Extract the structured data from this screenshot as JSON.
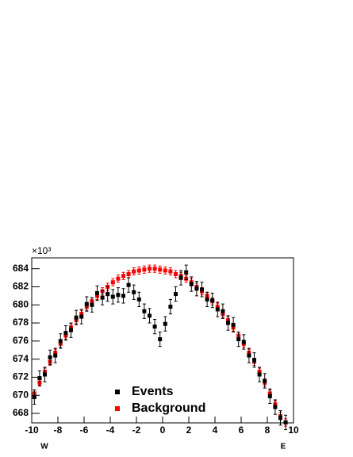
{
  "chart_data": {
    "type": "scatter",
    "y_multiplier": "×10³",
    "x_label_left": "W",
    "x_label_right": "E",
    "xlim": [
      -10,
      10
    ],
    "xticks": [
      -10,
      -8,
      -6,
      -4,
      -2,
      0,
      2,
      4,
      6,
      8,
      10
    ],
    "ylim": [
      666.95,
      685.2
    ],
    "yticks": [
      668,
      670,
      672,
      674,
      676,
      678,
      680,
      682,
      684
    ],
    "legend": "bottom-center",
    "x": [
      -9.8,
      -9.4,
      -9.0,
      -8.6,
      -8.2,
      -7.8,
      -7.4,
      -7.0,
      -6.6,
      -6.2,
      -5.8,
      -5.4,
      -5.0,
      -4.6,
      -4.2,
      -3.8,
      -3.4,
      -3.0,
      -2.6,
      -2.2,
      -1.8,
      -1.4,
      -1.0,
      -0.6,
      -0.2,
      0.2,
      0.6,
      1.0,
      1.4,
      1.8,
      2.2,
      2.6,
      3.0,
      3.4,
      3.8,
      4.2,
      4.6,
      5.0,
      5.4,
      5.8,
      6.2,
      6.6,
      7.0,
      7.4,
      7.8,
      8.2,
      8.6,
      9.0,
      9.4
    ],
    "series": [
      {
        "name": "Background",
        "color": "#ff0000",
        "error": 0.4,
        "values": [
          670.2,
          671.4,
          672.6,
          673.7,
          674.7,
          675.7,
          676.6,
          677.5,
          678.3,
          679.0,
          679.8,
          680.4,
          681.0,
          681.5,
          682.0,
          682.5,
          682.9,
          683.2,
          683.4,
          683.7,
          683.8,
          683.9,
          684.0,
          684.0,
          683.9,
          683.8,
          683.7,
          683.4,
          683.2,
          682.9,
          682.5,
          682.0,
          681.5,
          681.0,
          680.4,
          679.8,
          679.0,
          678.3,
          677.5,
          676.6,
          675.7,
          674.7,
          673.7,
          672.6,
          671.4,
          670.2,
          669.0,
          667.7,
          667.0
        ]
      },
      {
        "name": "Events",
        "color": "#000000",
        "error": 0.8,
        "values": [
          669.8,
          671.9,
          672.3,
          674.2,
          674.4,
          676.0,
          676.9,
          677.2,
          678.6,
          678.7,
          680.1,
          680.0,
          681.3,
          680.8,
          681.2,
          680.9,
          681.1,
          681.0,
          682.2,
          681.4,
          680.6,
          679.3,
          678.8,
          677.6,
          676.2,
          677.9,
          679.8,
          681.2,
          683.0,
          683.6,
          682.3,
          681.8,
          681.7,
          680.6,
          680.5,
          679.5,
          679.3,
          678.0,
          677.8,
          676.2,
          675.9,
          674.4,
          673.9,
          672.3,
          671.6,
          669.9,
          668.7,
          667.5,
          667.0
        ]
      }
    ]
  }
}
